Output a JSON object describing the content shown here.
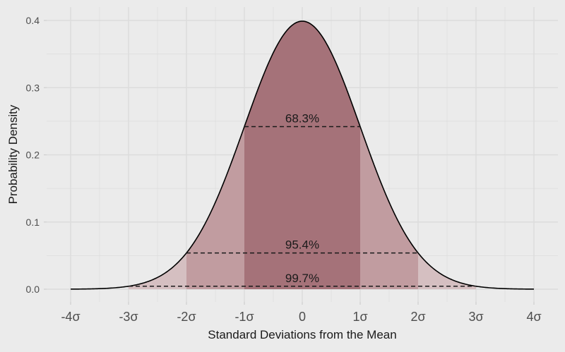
{
  "chart_data": {
    "type": "area",
    "title": "",
    "xlabel": "Standard Deviations from the Mean",
    "ylabel": "Probability Density",
    "xlim": [
      -4,
      4
    ],
    "ylim": [
      0,
      0.4
    ],
    "x_ticks": [
      -4,
      -3,
      -2,
      -1,
      0,
      1,
      2,
      3,
      4
    ],
    "x_tick_labels": [
      "-4σ",
      "-3σ",
      "-2σ",
      "-1σ",
      "0",
      "1σ",
      "2σ",
      "3σ",
      "4σ"
    ],
    "y_ticks": [
      0.0,
      0.1,
      0.2,
      0.3,
      0.4
    ],
    "y_tick_labels": [
      "0.0",
      "0.1",
      "0.2",
      "0.3",
      "0.4"
    ],
    "grid": true,
    "curve": {
      "distribution": "standard normal",
      "mean": 0,
      "sd": 1
    },
    "bands": [
      {
        "from": -3,
        "to": 3,
        "color": "#d5bfc1"
      },
      {
        "from": -2,
        "to": 2,
        "color": "#c19ca0"
      },
      {
        "from": -1,
        "to": 1,
        "color": "#a57279"
      }
    ],
    "annotations": [
      {
        "label": "68.3%",
        "from": -1,
        "to": 1,
        "y": 0.242
      },
      {
        "label": "95.4%",
        "from": -2,
        "to": 2,
        "y": 0.054
      },
      {
        "label": "99.7%",
        "from": -3,
        "to": 3,
        "y": 0.0044
      }
    ],
    "colors": {
      "background": "#ebebeb",
      "grid": "#d9d9d9",
      "curve": "#000000",
      "text": "#1a1a1a"
    }
  }
}
